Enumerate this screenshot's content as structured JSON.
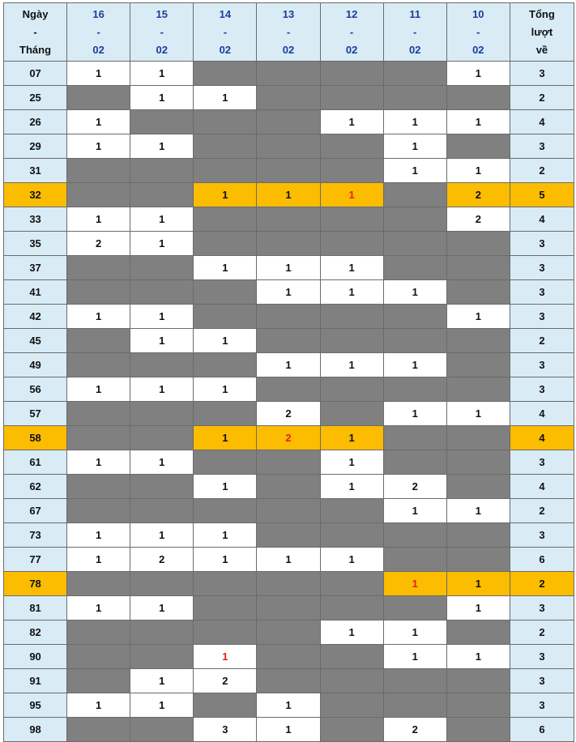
{
  "header": {
    "first": [
      "Ngày",
      "-",
      "Tháng"
    ],
    "dates": [
      [
        "16",
        "-",
        "02"
      ],
      [
        "15",
        "-",
        "02"
      ],
      [
        "14",
        "-",
        "02"
      ],
      [
        "13",
        "-",
        "02"
      ],
      [
        "12",
        "-",
        "02"
      ],
      [
        "11",
        "-",
        "02"
      ],
      [
        "10",
        "-",
        "02"
      ]
    ],
    "total": [
      "Tổng",
      "lượt",
      "về"
    ]
  },
  "colors": {
    "header_bg": "#d9ecf6",
    "header_text": "#1a3d9c",
    "empty": "#808080",
    "highlight": "#fcbc00",
    "red": "#e8201a"
  },
  "rows": [
    {
      "num": "07",
      "cells": [
        "1",
        "1",
        "",
        "",
        "",
        "",
        "1"
      ],
      "total": "3"
    },
    {
      "num": "25",
      "cells": [
        "",
        "1",
        "1",
        "",
        "",
        "",
        ""
      ],
      "total": "2"
    },
    {
      "num": "26",
      "cells": [
        "1",
        "",
        "",
        "",
        "1",
        "1",
        "1"
      ],
      "total": "4"
    },
    {
      "num": "29",
      "cells": [
        "1",
        "1",
        "",
        "",
        "",
        "1",
        ""
      ],
      "total": "3"
    },
    {
      "num": "31",
      "cells": [
        "",
        "",
        "",
        "",
        "",
        "1",
        "1"
      ],
      "total": "2"
    },
    {
      "num": "32",
      "cells": [
        "",
        "",
        "1",
        "1",
        "1",
        "",
        "2"
      ],
      "total": "5",
      "highlight": true,
      "red": [
        4
      ]
    },
    {
      "num": "33",
      "cells": [
        "1",
        "1",
        "",
        "",
        "",
        "",
        "2"
      ],
      "total": "4"
    },
    {
      "num": "35",
      "cells": [
        "2",
        "1",
        "",
        "",
        "",
        "",
        ""
      ],
      "total": "3"
    },
    {
      "num": "37",
      "cells": [
        "",
        "",
        "1",
        "1",
        "1",
        "",
        ""
      ],
      "total": "3"
    },
    {
      "num": "41",
      "cells": [
        "",
        "",
        "",
        "1",
        "1",
        "1",
        ""
      ],
      "total": "3"
    },
    {
      "num": "42",
      "cells": [
        "1",
        "1",
        "",
        "",
        "",
        "",
        "1"
      ],
      "total": "3"
    },
    {
      "num": "45",
      "cells": [
        "",
        "1",
        "1",
        "",
        "",
        "",
        ""
      ],
      "total": "2"
    },
    {
      "num": "49",
      "cells": [
        "",
        "",
        "",
        "1",
        "1",
        "1",
        ""
      ],
      "total": "3"
    },
    {
      "num": "56",
      "cells": [
        "1",
        "1",
        "1",
        "",
        "",
        "",
        ""
      ],
      "total": "3"
    },
    {
      "num": "57",
      "cells": [
        "",
        "",
        "",
        "2",
        "",
        "1",
        "1"
      ],
      "total": "4"
    },
    {
      "num": "58",
      "cells": [
        "",
        "",
        "1",
        "2",
        "1",
        "",
        ""
      ],
      "total": "4",
      "highlight": true,
      "red": [
        3
      ]
    },
    {
      "num": "61",
      "cells": [
        "1",
        "1",
        "",
        "",
        "1",
        "",
        ""
      ],
      "total": "3"
    },
    {
      "num": "62",
      "cells": [
        "",
        "",
        "1",
        "",
        "1",
        "2",
        ""
      ],
      "total": "4"
    },
    {
      "num": "67",
      "cells": [
        "",
        "",
        "",
        "",
        "",
        "1",
        "1"
      ],
      "total": "2"
    },
    {
      "num": "73",
      "cells": [
        "1",
        "1",
        "1",
        "",
        "",
        "",
        ""
      ],
      "total": "3"
    },
    {
      "num": "77",
      "cells": [
        "1",
        "2",
        "1",
        "1",
        "1",
        "",
        ""
      ],
      "total": "6"
    },
    {
      "num": "78",
      "cells": [
        "",
        "",
        "",
        "",
        "",
        "1",
        "1"
      ],
      "total": "2",
      "highlight": true,
      "red": [
        5
      ]
    },
    {
      "num": "81",
      "cells": [
        "1",
        "1",
        "",
        "",
        "",
        "",
        "1"
      ],
      "total": "3"
    },
    {
      "num": "82",
      "cells": [
        "",
        "",
        "",
        "",
        "1",
        "1",
        ""
      ],
      "total": "2"
    },
    {
      "num": "90",
      "cells": [
        "",
        "",
        "1",
        "",
        "",
        "1",
        "1"
      ],
      "total": "3",
      "red": [
        2
      ]
    },
    {
      "num": "91",
      "cells": [
        "",
        "1",
        "2",
        "",
        "",
        "",
        ""
      ],
      "total": "3"
    },
    {
      "num": "95",
      "cells": [
        "1",
        "1",
        "",
        "1",
        "",
        "",
        ""
      ],
      "total": "3"
    },
    {
      "num": "98",
      "cells": [
        "",
        "",
        "3",
        "1",
        "",
        "2",
        ""
      ],
      "total": "6"
    }
  ]
}
